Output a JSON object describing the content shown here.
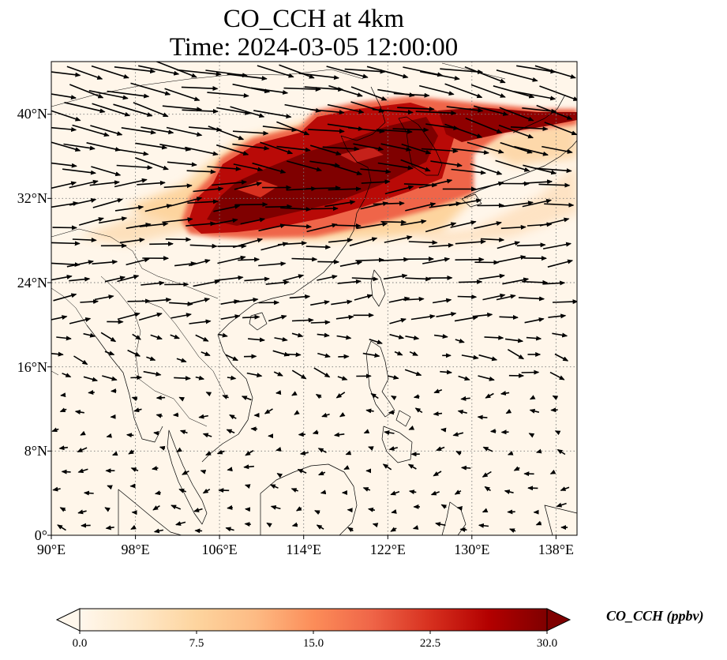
{
  "title": {
    "line1": "CO_CCH at 4km",
    "line2": "Time: 2024-03-05 12:00:00"
  },
  "map": {
    "extent": {
      "lon_min": 90,
      "lon_max": 140,
      "lat_min": 0,
      "lat_max": 45
    },
    "lat_ticks": [
      {
        "value": 40,
        "label": "40°N"
      },
      {
        "value": 32,
        "label": "32°N"
      },
      {
        "value": 24,
        "label": "24°N"
      },
      {
        "value": 16,
        "label": "16°N"
      },
      {
        "value": 8,
        "label": "8°N"
      },
      {
        "value": 0,
        "label": "0°"
      }
    ],
    "lon_ticks": [
      {
        "value": 90,
        "label": "90°E"
      },
      {
        "value": 98,
        "label": "98°E"
      },
      {
        "value": 106,
        "label": "106°E"
      },
      {
        "value": 114,
        "label": "114°E"
      },
      {
        "value": 122,
        "label": "122°E"
      },
      {
        "value": 130,
        "label": "130°E"
      },
      {
        "value": 138,
        "label": "138°E"
      }
    ],
    "gridlines": "dotted",
    "field": "CO_CCH",
    "plume_max_ppbv": 30
  },
  "colorbar": {
    "label": "CO_CCH (ppbv)",
    "min": 0.0,
    "max": 30.0,
    "extend": "both",
    "colormap": "OrRd",
    "ticks": [
      "0.0",
      "7.5",
      "15.0",
      "22.5",
      "30.0"
    ],
    "colors": [
      "#fff7ec",
      "#fee8c8",
      "#fdd49e",
      "#fdbb84",
      "#fc8d59",
      "#ef6548",
      "#d7301f",
      "#b30000",
      "#7f0000"
    ]
  }
}
